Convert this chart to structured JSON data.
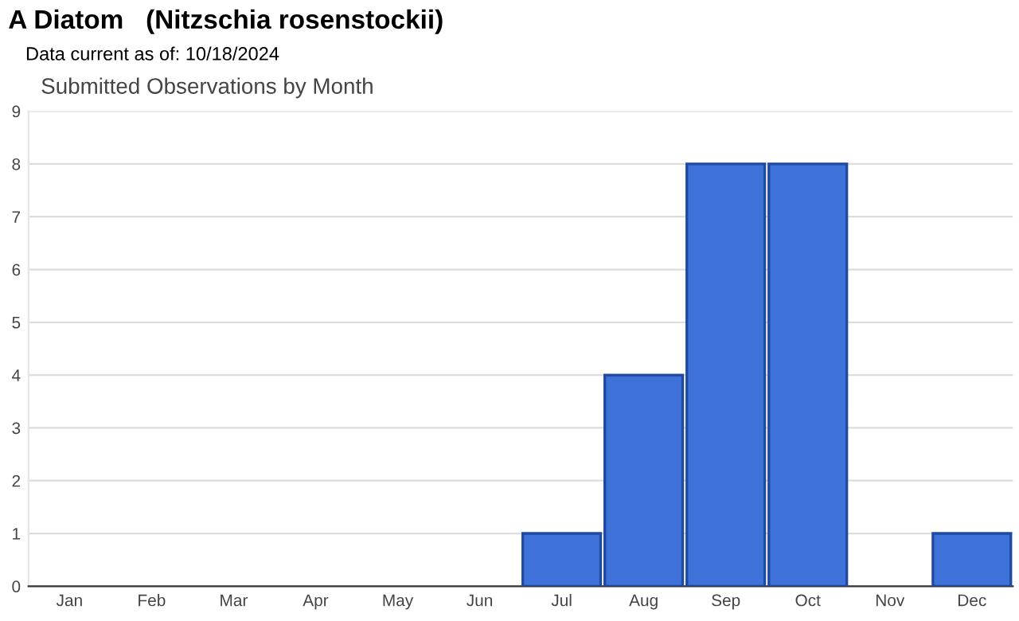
{
  "chart_data": {
    "type": "bar",
    "title": "A Diatom   (Nitzschia rosenstockii)",
    "subtitle": "Data current as of: 10/18/2024",
    "annotations": [
      "Submitted Observations by Month"
    ],
    "categories": [
      "Jan",
      "Feb",
      "Mar",
      "Apr",
      "May",
      "Jun",
      "Jul",
      "Aug",
      "Sep",
      "Oct",
      "Nov",
      "Dec"
    ],
    "values": [
      0,
      0,
      0,
      0,
      0,
      0,
      1,
      4,
      8,
      8,
      0,
      1
    ],
    "color": "#3f72d9",
    "ylim": [
      0,
      9
    ],
    "yticks": [
      0,
      1,
      2,
      3,
      4,
      5,
      6,
      7,
      8,
      9
    ],
    "grid": "y"
  }
}
